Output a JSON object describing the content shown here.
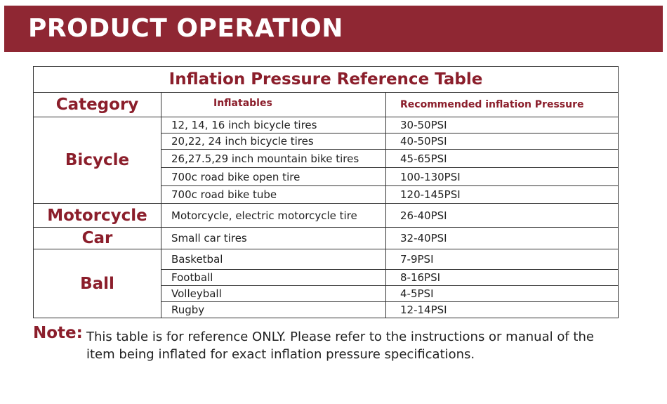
{
  "banner": {
    "title": "PRODUCT OPERATION",
    "color": "#8f2733"
  },
  "table": {
    "title": "Inflation Pressure Reference Table",
    "headers": {
      "category": "Category",
      "inflatables": "Inflatables",
      "pressure": "Recommended inflation Pressure"
    },
    "groups": [
      {
        "category": "Bicycle",
        "rows": [
          {
            "item": "12, 14, 16 inch bicycle tires",
            "pressure": "30-50PSI"
          },
          {
            "item": "20,22, 24 inch bicycle tires",
            "pressure": "40-50PSI"
          },
          {
            "item": "26,27.5,29 inch mountain bike tires",
            "pressure": "45-65PSI"
          },
          {
            "item": "700c road bike open tire",
            "pressure": "100-130PSI"
          },
          {
            "item": "700c road bike tube",
            "pressure": "120-145PSI"
          }
        ]
      },
      {
        "category": "Motorcycle",
        "rows": [
          {
            "item": "Motorcycle, electric motorcycle tire",
            "pressure": "26-40PSI"
          }
        ]
      },
      {
        "category": "Car",
        "rows": [
          {
            "item": "Small car tires",
            "pressure": "32-40PSI"
          }
        ]
      },
      {
        "category": "Ball",
        "rows": [
          {
            "item": "Basketbal",
            "pressure": "7-9PSI"
          },
          {
            "item": "Football",
            "pressure": "8-16PSI"
          },
          {
            "item": "Volleyball",
            "pressure": "4-5PSI"
          },
          {
            "item": "Rugby",
            "pressure": "12-14PSI"
          }
        ]
      }
    ]
  },
  "note": {
    "label": "Note:",
    "text": "This table is for reference ONLY. Please refer to the instructions or manual of the item being inflated for exact inflation pressure specifications."
  },
  "colors": {
    "accent": "#8b1e2b"
  }
}
